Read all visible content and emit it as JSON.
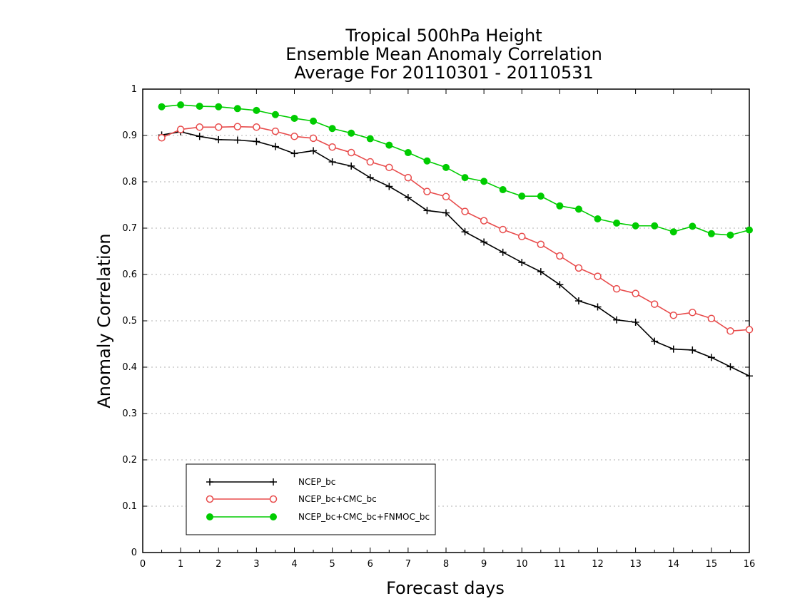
{
  "chart_data": {
    "type": "line",
    "title": [
      "Tropical 500hPa Height",
      "Ensemble Mean Anomaly Correlation",
      "Average For 20110301 - 20110531"
    ],
    "xlabel": "Forecast days",
    "ylabel": "Anomaly Correlation",
    "xlim": [
      0,
      16
    ],
    "ylim": [
      0,
      1
    ],
    "xticks": [
      "0",
      "1",
      "2",
      "3",
      "4",
      "5",
      "6",
      "7",
      "8",
      "9",
      "10",
      "11",
      "12",
      "13",
      "14",
      "15",
      "16"
    ],
    "yticks": [
      "0",
      "0.1",
      "0.2",
      "0.3",
      "0.4",
      "0.5",
      "0.6",
      "0.7",
      "0.8",
      "0.9",
      "1"
    ],
    "grid": "horizontal dotted",
    "legend_position": "bottom-left",
    "x": [
      0.5,
      1,
      1.5,
      2,
      2.5,
      3,
      3.5,
      4,
      4.5,
      5,
      5.5,
      6,
      6.5,
      7,
      7.5,
      8,
      8.5,
      9,
      9.5,
      10,
      10.5,
      11,
      11.5,
      12,
      12.5,
      13,
      13.5,
      14,
      14.5,
      15,
      15.5,
      16
    ],
    "series": [
      {
        "name": "NCEP_bc",
        "color": "#000000",
        "marker": "plus",
        "values": [
          0.901,
          0.908,
          0.898,
          0.891,
          0.89,
          0.887,
          0.876,
          0.861,
          0.867,
          0.843,
          0.834,
          0.809,
          0.79,
          0.766,
          0.738,
          0.733,
          0.692,
          0.67,
          0.648,
          0.626,
          0.606,
          0.578,
          0.543,
          0.53,
          0.502,
          0.497,
          0.456,
          0.439,
          0.437,
          0.421,
          0.401,
          0.381
        ]
      },
      {
        "name": "NCEP_bc+CMC_bc",
        "color": "#e84b4b",
        "marker": "open-circle",
        "values": [
          0.895,
          0.913,
          0.918,
          0.918,
          0.919,
          0.918,
          0.909,
          0.898,
          0.894,
          0.875,
          0.863,
          0.843,
          0.831,
          0.809,
          0.779,
          0.768,
          0.736,
          0.716,
          0.697,
          0.682,
          0.665,
          0.64,
          0.614,
          0.596,
          0.569,
          0.559,
          0.536,
          0.512,
          0.518,
          0.505,
          0.478,
          0.481
        ]
      },
      {
        "name": "NCEP_bc+CMC_bc+FNMOC_bc",
        "color": "#00cc00",
        "marker": "filled-circle",
        "values": [
          0.962,
          0.966,
          0.963,
          0.962,
          0.958,
          0.954,
          0.945,
          0.937,
          0.931,
          0.915,
          0.905,
          0.893,
          0.879,
          0.863,
          0.845,
          0.831,
          0.809,
          0.801,
          0.783,
          0.769,
          0.769,
          0.748,
          0.741,
          0.72,
          0.711,
          0.705,
          0.705,
          0.692,
          0.704,
          0.688,
          0.685,
          0.696
        ]
      }
    ]
  }
}
